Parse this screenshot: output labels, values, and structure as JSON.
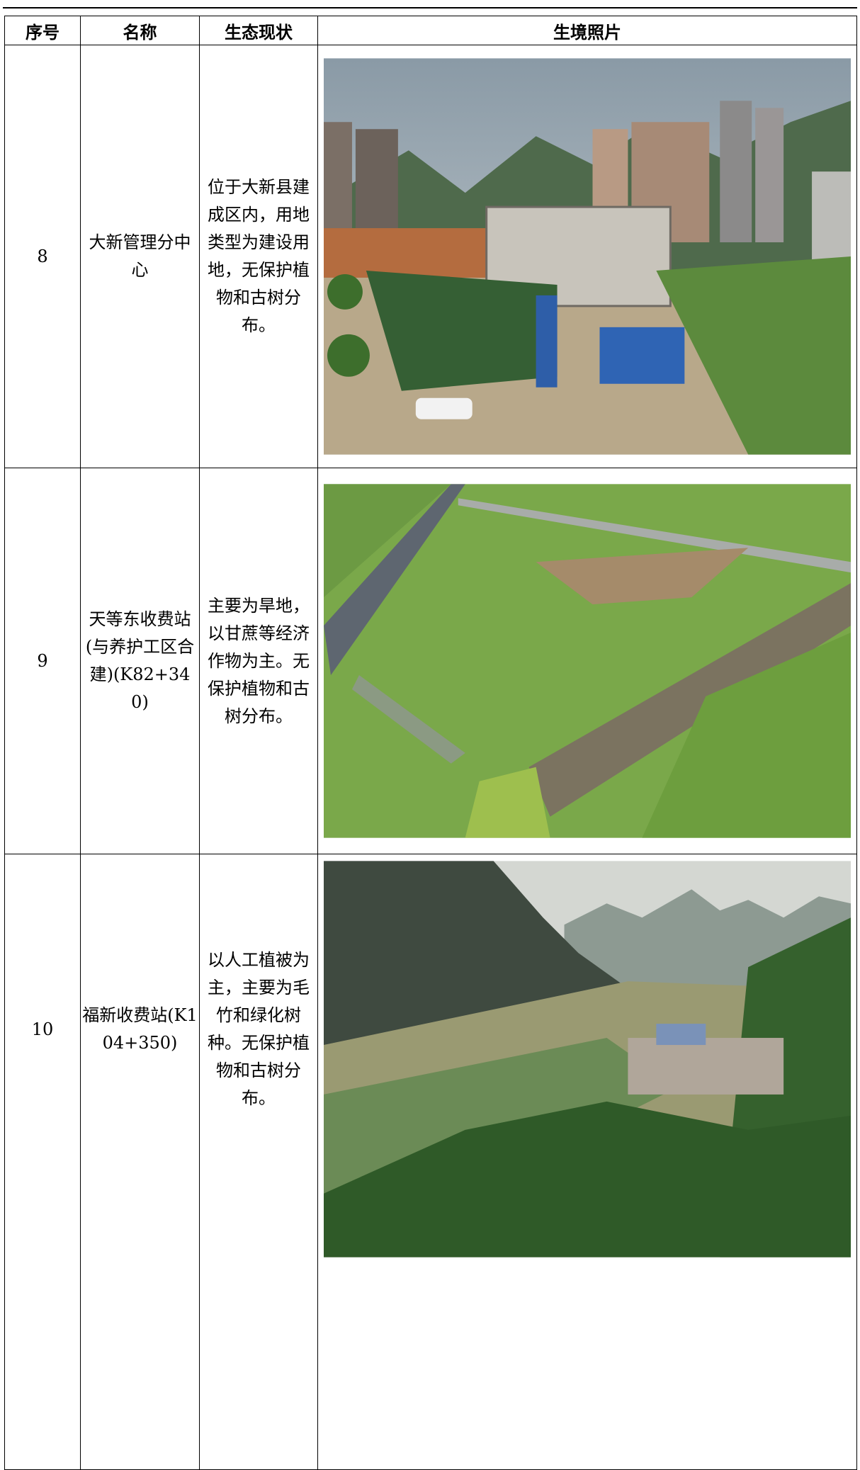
{
  "table": {
    "header": [
      "序号",
      "名称",
      "生态现状",
      "生境照片"
    ],
    "rows": [
      [
        "8",
        "大新管理分中心",
        "位于大新县建成区内，用地类型为建设用地，无保护植物和古树分布。"
      ],
      [
        "9",
        "天等东收费站(与养护工区合建)(K82+340)",
        "主要为旱地，以甘蔗等经济作物为主。无保护植物和古树分布。"
      ],
      [
        "10",
        "福新收费站(K104+350)",
        "以人工植被为主，主要为毛竹和绿化树种。无保护植物和古树分布。"
      ]
    ]
  }
}
